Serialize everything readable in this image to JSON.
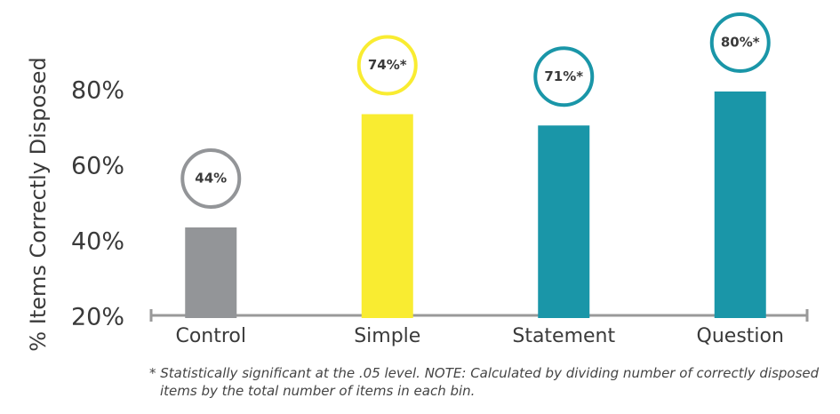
{
  "chart_data": {
    "type": "bar",
    "y_label": "% Items Correctly Disposed",
    "categories": [
      "Control",
      "Simple",
      "Statement",
      "Question"
    ],
    "values": [
      44,
      74,
      71,
      80
    ],
    "value_labels": [
      "44%",
      "74%*",
      "71%*",
      "80%*"
    ],
    "colors": [
      "#939598",
      "#f9ec31",
      "#1a96a8",
      "#1a96a8"
    ],
    "ylim": [
      20,
      80
    ],
    "yticks": [
      {
        "value": 20,
        "label": "20%"
      },
      {
        "value": 40,
        "label": "40%"
      },
      {
        "value": 60,
        "label": "60%"
      },
      {
        "value": 80,
        "label": "80%"
      }
    ],
    "note": "* Statistically significant at the .05 level. NOTE: Calculated by dividing number of correctly disposed items by the total number of items in each bin."
  }
}
